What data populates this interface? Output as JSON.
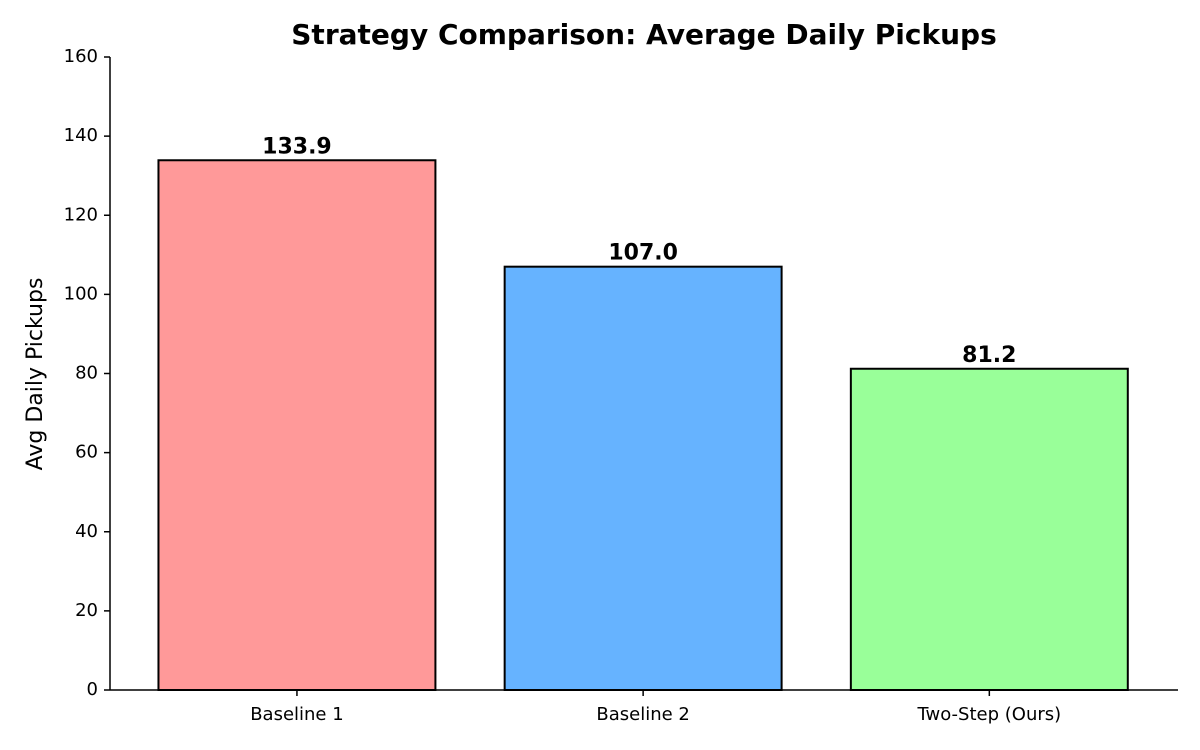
{
  "chart_data": {
    "type": "bar",
    "title": "Strategy Comparison: Average Daily Pickups",
    "y_label": "Avg Daily Pickups",
    "categories": [
      "Baseline 1",
      "Baseline 2",
      "Two-Step (Ours)"
    ],
    "values": [
      133.9,
      107.0,
      81.2
    ],
    "value_labels": [
      "133.9",
      "107.0",
      "81.2"
    ],
    "colors": [
      "#ff9999",
      "#66b3ff",
      "#99ff99"
    ],
    "ylim": [
      0,
      160
    ],
    "yticks": [
      0,
      20,
      40,
      60,
      80,
      100,
      120,
      140,
      160
    ],
    "grid": false
  }
}
